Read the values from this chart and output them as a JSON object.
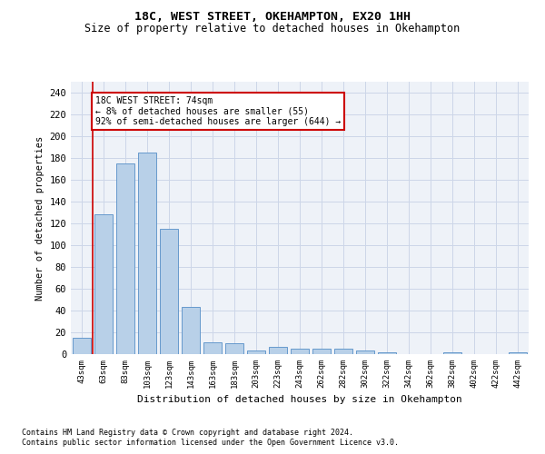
{
  "title1": "18C, WEST STREET, OKEHAMPTON, EX20 1HH",
  "title2": "Size of property relative to detached houses in Okehampton",
  "xlabel": "Distribution of detached houses by size in Okehampton",
  "ylabel": "Number of detached properties",
  "footnote1": "Contains HM Land Registry data © Crown copyright and database right 2024.",
  "footnote2": "Contains public sector information licensed under the Open Government Licence v3.0.",
  "annotation_title": "18C WEST STREET: 74sqm",
  "annotation_line1": "← 8% of detached houses are smaller (55)",
  "annotation_line2": "92% of semi-detached houses are larger (644) →",
  "bar_color": "#b8d0e8",
  "bar_edge_color": "#6699cc",
  "grid_color": "#ccd6e8",
  "vline_color": "#cc0000",
  "background_color": "#eef2f8",
  "title_color": "#000000",
  "categories": [
    "43sqm",
    "63sqm",
    "83sqm",
    "103sqm",
    "123sqm",
    "143sqm",
    "163sqm",
    "183sqm",
    "203sqm",
    "223sqm",
    "243sqm",
    "262sqm",
    "282sqm",
    "302sqm",
    "322sqm",
    "342sqm",
    "362sqm",
    "382sqm",
    "402sqm",
    "422sqm",
    "442sqm"
  ],
  "values": [
    15,
    128,
    175,
    185,
    115,
    43,
    11,
    10,
    3,
    7,
    5,
    5,
    5,
    3,
    2,
    0,
    0,
    2,
    0,
    0,
    2
  ],
  "vline_x": 0.5,
  "ylim": [
    0,
    250
  ],
  "yticks": [
    0,
    20,
    40,
    60,
    80,
    100,
    120,
    140,
    160,
    180,
    200,
    220,
    240
  ],
  "figsize": [
    6.0,
    5.0
  ],
  "dpi": 100
}
